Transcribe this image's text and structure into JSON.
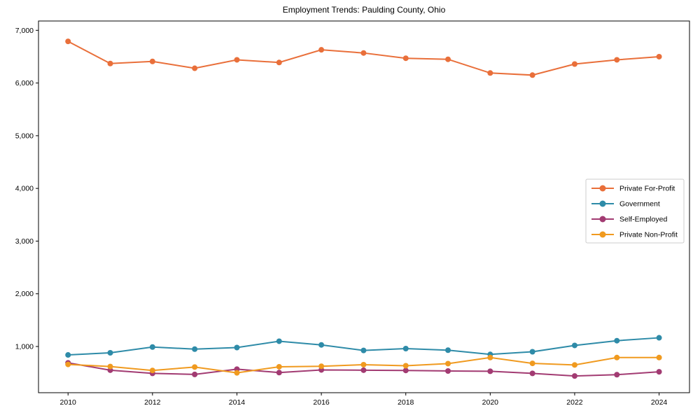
{
  "chart_data": {
    "type": "line",
    "title": "Employment Trends: Paulding County, Ohio",
    "xlabel": "",
    "ylabel": "",
    "x": [
      2010,
      2011,
      2012,
      2013,
      2014,
      2015,
      2016,
      2017,
      2018,
      2019,
      2020,
      2021,
      2022,
      2023,
      2024
    ],
    "x_ticks": [
      2010,
      2012,
      2014,
      2016,
      2018,
      2020,
      2022,
      2024
    ],
    "x_tick_labels": [
      "2010",
      "2012",
      "2014",
      "2016",
      "2018",
      "2020",
      "2022",
      "2024"
    ],
    "y_ticks": [
      1000,
      2000,
      3000,
      4000,
      5000,
      6000,
      7000
    ],
    "y_tick_labels": [
      "1,000",
      "2,000",
      "3,000",
      "4,000",
      "5,000",
      "6,000",
      "7,000"
    ],
    "xlim": [
      2009.3,
      2024.72
    ],
    "ylim": [
      123,
      7177
    ],
    "grid": false,
    "legend_position": "center-right",
    "axis_color": "#000000",
    "legend_border_color": "#cccccc",
    "series": [
      {
        "name": "Private For-Profit",
        "color": "#E96F3A",
        "values": [
          6790,
          6370,
          6410,
          6280,
          6440,
          6390,
          6630,
          6570,
          6470,
          6450,
          6190,
          6150,
          6360,
          6440,
          6500
        ]
      },
      {
        "name": "Government",
        "color": "#2E8BA8",
        "values": [
          840,
          880,
          990,
          950,
          980,
          1100,
          1030,
          925,
          960,
          930,
          850,
          900,
          1020,
          1110,
          1165
        ]
      },
      {
        "name": "Self-Employed",
        "color": "#A23B72",
        "values": [
          690,
          550,
          490,
          470,
          570,
          505,
          555,
          550,
          545,
          535,
          530,
          490,
          440,
          465,
          520
        ]
      },
      {
        "name": "Private Non-Profit",
        "color": "#F09A1F",
        "values": [
          660,
          620,
          545,
          610,
          500,
          615,
          625,
          655,
          635,
          675,
          790,
          680,
          650,
          790,
          790
        ]
      }
    ]
  }
}
